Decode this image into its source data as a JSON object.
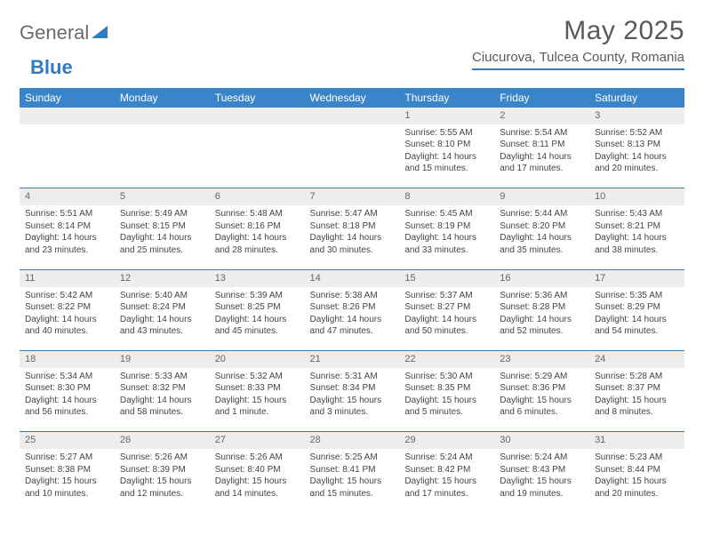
{
  "logo": {
    "text1": "General",
    "text2": "Blue"
  },
  "title": "May 2025",
  "location": "Ciucurova, Tulcea County, Romania",
  "colors": {
    "header_bg": "#3a85c9",
    "header_text": "#ffffff",
    "daynum_bg": "#ededed",
    "rule": "#2f7dc0",
    "logo_gray": "#6b6b6b",
    "logo_blue": "#2f7dc0",
    "body_text": "#444444"
  },
  "weekdays": [
    "Sunday",
    "Monday",
    "Tuesday",
    "Wednesday",
    "Thursday",
    "Friday",
    "Saturday"
  ],
  "weeks": [
    [
      null,
      null,
      null,
      null,
      {
        "n": "1",
        "sr": "5:55 AM",
        "ss": "8:10 PM",
        "dl": "14 hours and 15 minutes."
      },
      {
        "n": "2",
        "sr": "5:54 AM",
        "ss": "8:11 PM",
        "dl": "14 hours and 17 minutes."
      },
      {
        "n": "3",
        "sr": "5:52 AM",
        "ss": "8:13 PM",
        "dl": "14 hours and 20 minutes."
      }
    ],
    [
      {
        "n": "4",
        "sr": "5:51 AM",
        "ss": "8:14 PM",
        "dl": "14 hours and 23 minutes."
      },
      {
        "n": "5",
        "sr": "5:49 AM",
        "ss": "8:15 PM",
        "dl": "14 hours and 25 minutes."
      },
      {
        "n": "6",
        "sr": "5:48 AM",
        "ss": "8:16 PM",
        "dl": "14 hours and 28 minutes."
      },
      {
        "n": "7",
        "sr": "5:47 AM",
        "ss": "8:18 PM",
        "dl": "14 hours and 30 minutes."
      },
      {
        "n": "8",
        "sr": "5:45 AM",
        "ss": "8:19 PM",
        "dl": "14 hours and 33 minutes."
      },
      {
        "n": "9",
        "sr": "5:44 AM",
        "ss": "8:20 PM",
        "dl": "14 hours and 35 minutes."
      },
      {
        "n": "10",
        "sr": "5:43 AM",
        "ss": "8:21 PM",
        "dl": "14 hours and 38 minutes."
      }
    ],
    [
      {
        "n": "11",
        "sr": "5:42 AM",
        "ss": "8:22 PM",
        "dl": "14 hours and 40 minutes."
      },
      {
        "n": "12",
        "sr": "5:40 AM",
        "ss": "8:24 PM",
        "dl": "14 hours and 43 minutes."
      },
      {
        "n": "13",
        "sr": "5:39 AM",
        "ss": "8:25 PM",
        "dl": "14 hours and 45 minutes."
      },
      {
        "n": "14",
        "sr": "5:38 AM",
        "ss": "8:26 PM",
        "dl": "14 hours and 47 minutes."
      },
      {
        "n": "15",
        "sr": "5:37 AM",
        "ss": "8:27 PM",
        "dl": "14 hours and 50 minutes."
      },
      {
        "n": "16",
        "sr": "5:36 AM",
        "ss": "8:28 PM",
        "dl": "14 hours and 52 minutes."
      },
      {
        "n": "17",
        "sr": "5:35 AM",
        "ss": "8:29 PM",
        "dl": "14 hours and 54 minutes."
      }
    ],
    [
      {
        "n": "18",
        "sr": "5:34 AM",
        "ss": "8:30 PM",
        "dl": "14 hours and 56 minutes."
      },
      {
        "n": "19",
        "sr": "5:33 AM",
        "ss": "8:32 PM",
        "dl": "14 hours and 58 minutes."
      },
      {
        "n": "20",
        "sr": "5:32 AM",
        "ss": "8:33 PM",
        "dl": "15 hours and 1 minute."
      },
      {
        "n": "21",
        "sr": "5:31 AM",
        "ss": "8:34 PM",
        "dl": "15 hours and 3 minutes."
      },
      {
        "n": "22",
        "sr": "5:30 AM",
        "ss": "8:35 PM",
        "dl": "15 hours and 5 minutes."
      },
      {
        "n": "23",
        "sr": "5:29 AM",
        "ss": "8:36 PM",
        "dl": "15 hours and 6 minutes."
      },
      {
        "n": "24",
        "sr": "5:28 AM",
        "ss": "8:37 PM",
        "dl": "15 hours and 8 minutes."
      }
    ],
    [
      {
        "n": "25",
        "sr": "5:27 AM",
        "ss": "8:38 PM",
        "dl": "15 hours and 10 minutes."
      },
      {
        "n": "26",
        "sr": "5:26 AM",
        "ss": "8:39 PM",
        "dl": "15 hours and 12 minutes."
      },
      {
        "n": "27",
        "sr": "5:26 AM",
        "ss": "8:40 PM",
        "dl": "15 hours and 14 minutes."
      },
      {
        "n": "28",
        "sr": "5:25 AM",
        "ss": "8:41 PM",
        "dl": "15 hours and 15 minutes."
      },
      {
        "n": "29",
        "sr": "5:24 AM",
        "ss": "8:42 PM",
        "dl": "15 hours and 17 minutes."
      },
      {
        "n": "30",
        "sr": "5:24 AM",
        "ss": "8:43 PM",
        "dl": "15 hours and 19 minutes."
      },
      {
        "n": "31",
        "sr": "5:23 AM",
        "ss": "8:44 PM",
        "dl": "15 hours and 20 minutes."
      }
    ]
  ],
  "labels": {
    "sunrise": "Sunrise: ",
    "sunset": "Sunset: ",
    "daylight": "Daylight: "
  }
}
